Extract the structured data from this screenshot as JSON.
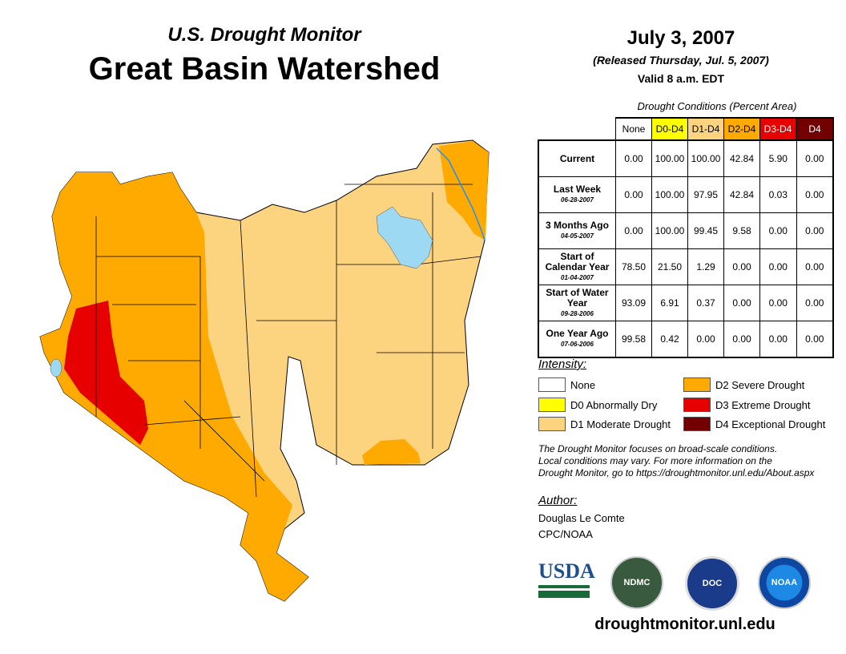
{
  "header": {
    "subtitle": "U.S. Drought Monitor",
    "title": "Great Basin Watershed",
    "date": "July 3, 2007",
    "released": "(Released Thursday, Jul. 5, 2007)",
    "valid": "Valid 8 a.m. EDT"
  },
  "table": {
    "caption": "Drought Conditions (Percent Area)",
    "columns": [
      {
        "label": "None",
        "color": "#ffffff",
        "text": "#000"
      },
      {
        "label": "D0-D4",
        "color": "#ffff00",
        "text": "#000"
      },
      {
        "label": "D1-D4",
        "color": "#fcd37f",
        "text": "#000"
      },
      {
        "label": "D2-D4",
        "color": "#ffaa00",
        "text": "#000"
      },
      {
        "label": "D3-D4",
        "color": "#e60000",
        "text": "#fff"
      },
      {
        "label": "D4",
        "color": "#730000",
        "text": "#fff"
      }
    ],
    "rows": [
      {
        "label": "Current",
        "date": "",
        "values": [
          "0.00",
          "100.00",
          "100.00",
          "42.84",
          "5.90",
          "0.00"
        ]
      },
      {
        "label": "Last Week",
        "date": "06-28-2007",
        "values": [
          "0.00",
          "100.00",
          "97.95",
          "42.84",
          "0.03",
          "0.00"
        ]
      },
      {
        "label": "3 Months Ago",
        "date": "04-05-2007",
        "values": [
          "0.00",
          "100.00",
          "99.45",
          "9.58",
          "0.00",
          "0.00"
        ]
      },
      {
        "label": "Start of Calendar Year",
        "date": "01-04-2007",
        "values": [
          "78.50",
          "21.50",
          "1.29",
          "0.00",
          "0.00",
          "0.00"
        ]
      },
      {
        "label": "Start of Water Year",
        "date": "09-28-2006",
        "values": [
          "93.09",
          "6.91",
          "0.37",
          "0.00",
          "0.00",
          "0.00"
        ]
      },
      {
        "label": "One Year Ago",
        "date": "07-06-2006",
        "values": [
          "99.58",
          "0.42",
          "0.00",
          "0.00",
          "0.00",
          "0.00"
        ]
      }
    ]
  },
  "legend": {
    "title": "Intensity:",
    "items": [
      {
        "label": "None",
        "color": "#ffffff"
      },
      {
        "label": "D0 Abnormally Dry",
        "color": "#ffff00"
      },
      {
        "label": "D1 Moderate Drought",
        "color": "#fcd37f"
      },
      {
        "label": "D2 Severe Drought",
        "color": "#ffaa00"
      },
      {
        "label": "D3 Extreme Drought",
        "color": "#e60000"
      },
      {
        "label": "D4 Exceptional Drought",
        "color": "#730000"
      }
    ]
  },
  "note": [
    "The Drought Monitor focuses on broad-scale conditions.",
    "Local conditions may vary. For more information on the",
    "Drought Monitor, go to https://droughtmonitor.unl.edu/About.aspx"
  ],
  "author": {
    "title": "Author:",
    "name": "Douglas Le Comte",
    "org": "CPC/NOAA"
  },
  "logos": [
    "USDA",
    "NDMC",
    "DOC",
    "NOAA"
  ],
  "url": "droughtmonitor.unl.edu"
}
